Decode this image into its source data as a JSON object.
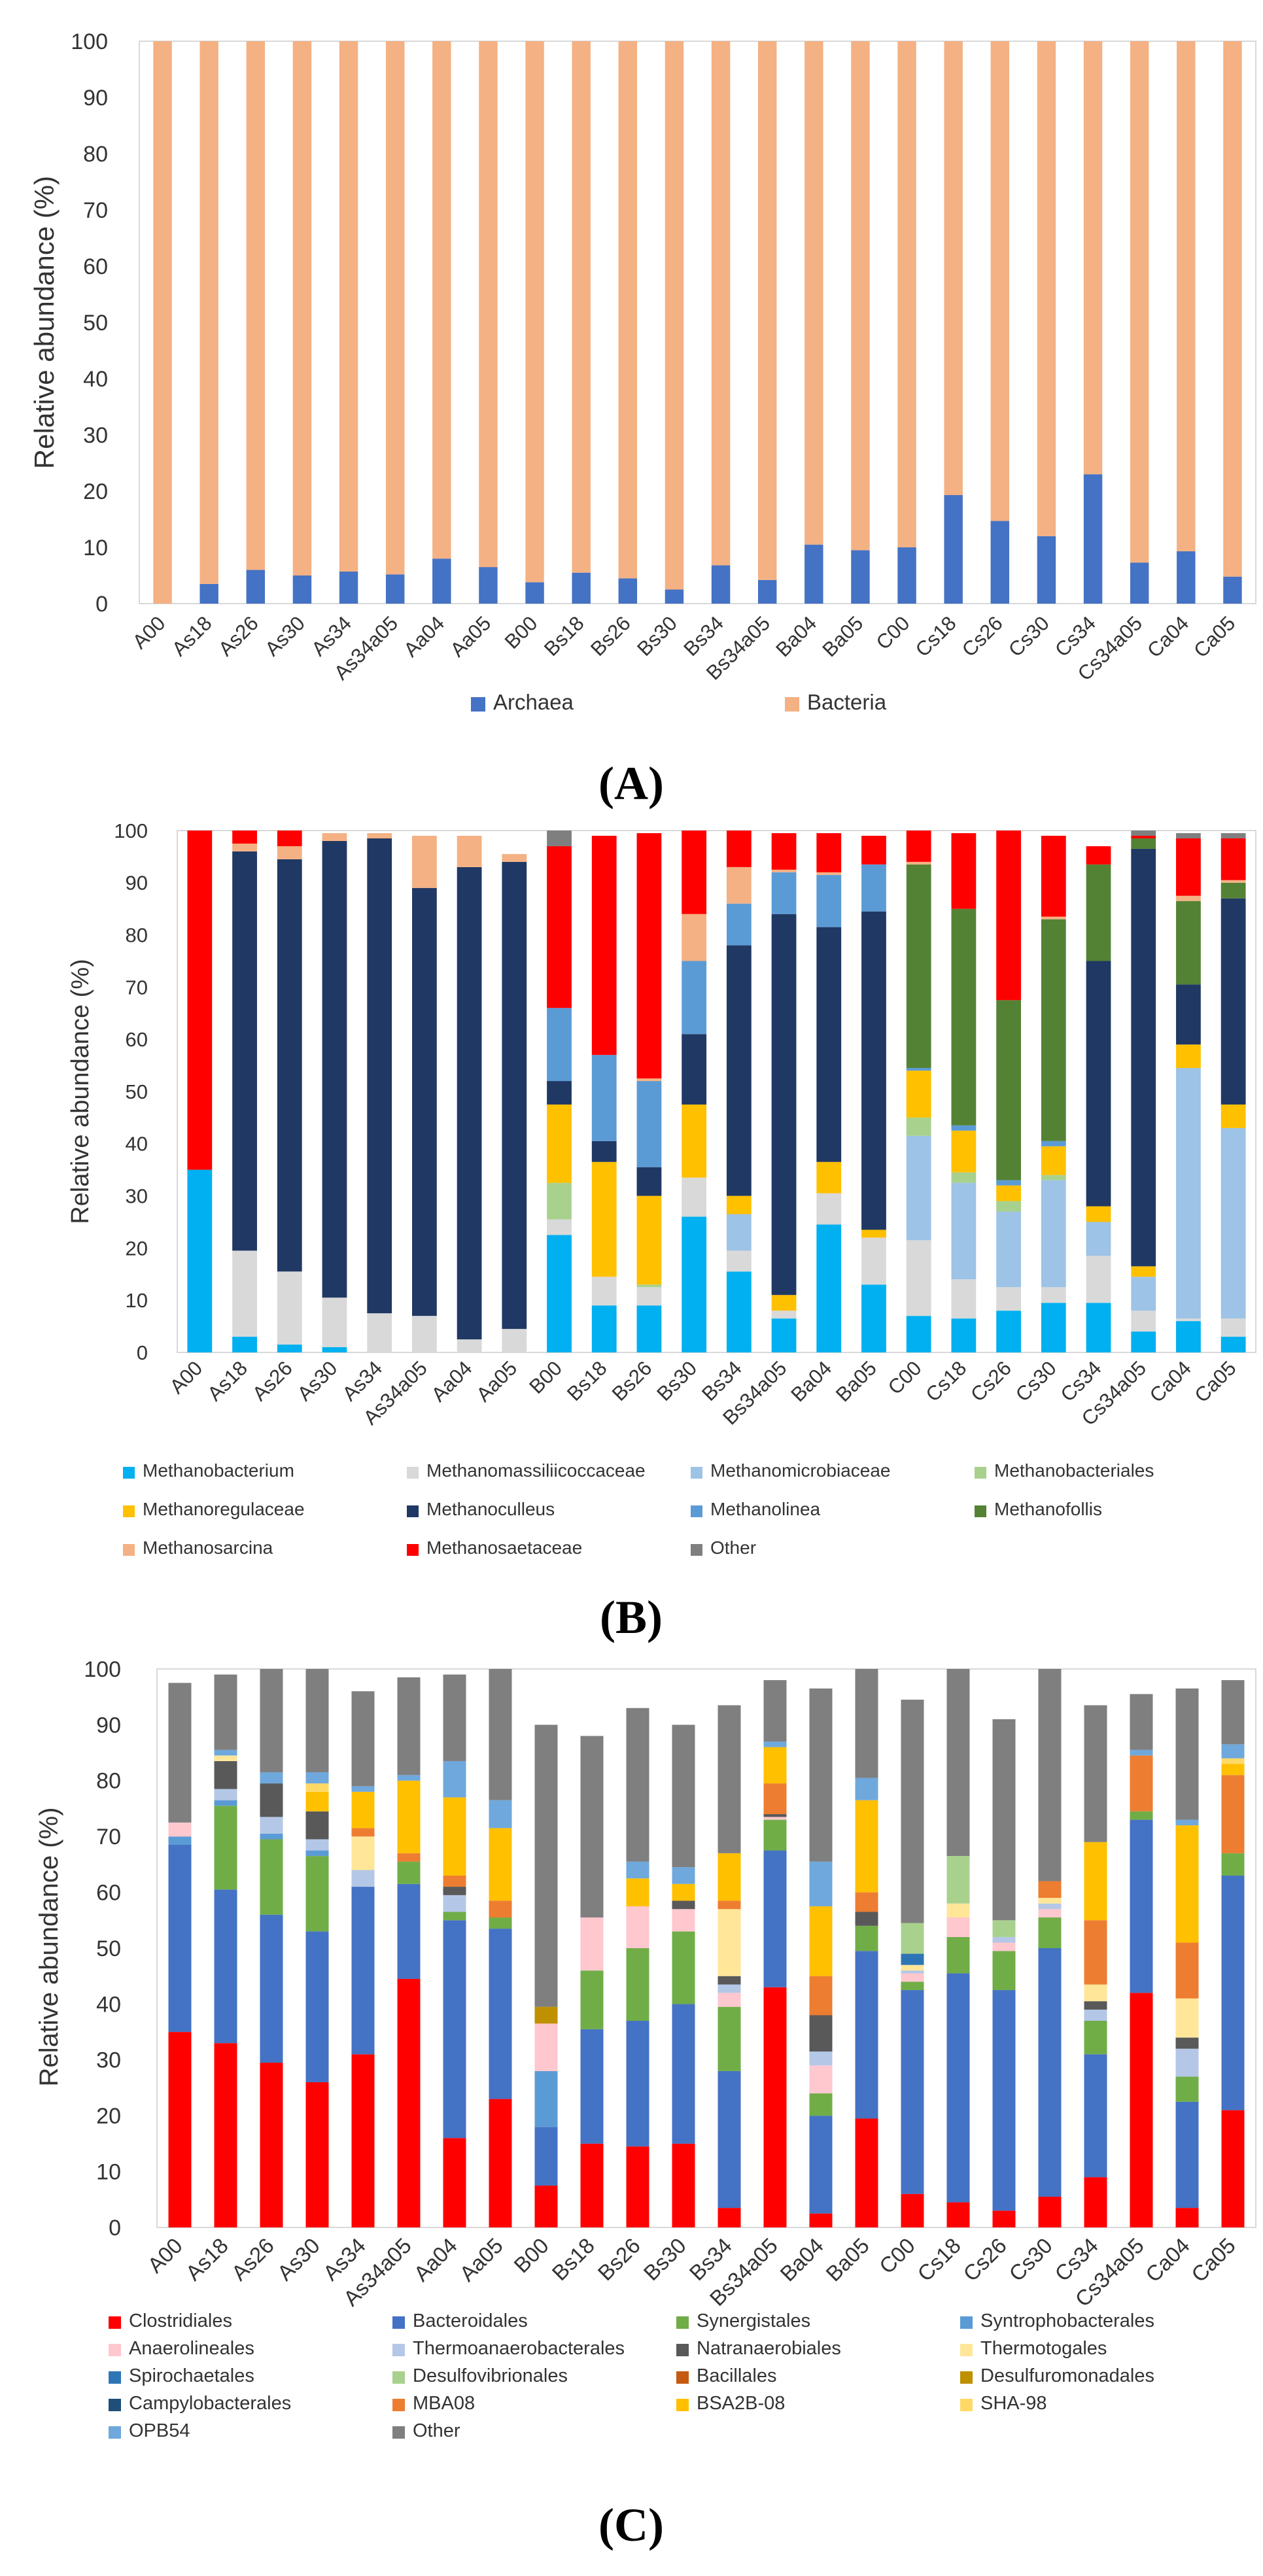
{
  "samples": [
    "A00",
    "As18",
    "As26",
    "As30",
    "As34",
    "As34a05",
    "Aa04",
    "Aa05",
    "B00",
    "Bs18",
    "Bs26",
    "Bs30",
    "Bs34",
    "Bs34a05",
    "Ba04",
    "Ba05",
    "C00",
    "Cs18",
    "Cs26",
    "Cs30",
    "Cs34",
    "Cs34a05",
    "Ca04",
    "Ca05"
  ],
  "panel_labels": [
    "(A)",
    "(B)",
    "(C)"
  ],
  "chart_data": [
    {
      "type": "bar",
      "stacked": true,
      "panel": "(A)",
      "ylabel": "Relative abundance (%)",
      "ylim": [
        0,
        100
      ],
      "yticks": [
        "0",
        "10",
        "20",
        "30",
        "40",
        "50",
        "60",
        "70",
        "80",
        "90",
        "100"
      ],
      "legend_position": "bottom",
      "legend": [
        "Archaea",
        "Bacteria"
      ],
      "series": [
        {
          "name": "Archaea",
          "color": "#4472c4",
          "values": [
            0,
            3.5,
            6,
            5,
            5.7,
            5.2,
            8,
            6.5,
            3.8,
            5.5,
            4.5,
            2.5,
            6.8,
            4.2,
            10.5,
            9.5,
            10,
            19.3,
            14.7,
            12,
            23,
            7.3,
            9.3,
            4.8
          ]
        },
        {
          "name": "Bacteria",
          "color": "#f4b183",
          "values": [
            100,
            96.5,
            94,
            95,
            94.3,
            94.8,
            92,
            93.5,
            96.2,
            94.5,
            95.5,
            97.5,
            93.2,
            95.8,
            89.5,
            90.5,
            90,
            80.7,
            85.3,
            88,
            77,
            92.7,
            90.7,
            95.2
          ]
        }
      ]
    },
    {
      "type": "bar",
      "stacked": true,
      "panel": "(B)",
      "ylabel": "Relative abundance (%)",
      "ylim": [
        0,
        100
      ],
      "yticks": [
        "0",
        "10",
        "20",
        "30",
        "40",
        "50",
        "60",
        "70",
        "80",
        "90",
        "100"
      ],
      "legend_position": "bottom",
      "legend_columns": 4,
      "series": [
        {
          "name": "Methanobacterium",
          "color": "#00b0f0",
          "values": [
            35,
            3,
            1.5,
            1,
            0,
            0,
            0,
            0,
            22.5,
            9,
            9,
            26,
            15.5,
            6.5,
            24.5,
            13,
            7,
            6.5,
            8,
            9.5,
            9.5,
            4,
            6,
            3
          ]
        },
        {
          "name": "Methanomassiliicoccaceae",
          "color": "#d9d9d9",
          "values": [
            0,
            16.5,
            14,
            9.5,
            7.5,
            7,
            2.5,
            4.5,
            3,
            5.5,
            3.5,
            7.5,
            4,
            1.5,
            6,
            9,
            14.5,
            7.5,
            4.5,
            3,
            9,
            4,
            0.5,
            3.5
          ]
        },
        {
          "name": "Methanomicrobiaceae",
          "color": "#9dc3e6",
          "values": [
            0,
            0,
            0,
            0,
            0,
            0,
            0,
            0,
            0,
            0,
            0,
            0,
            7,
            0,
            0,
            0,
            20,
            18.5,
            14.5,
            20.5,
            6.5,
            6.5,
            48,
            36.5
          ]
        },
        {
          "name": "Methanobacteriales",
          "color": "#a9d18e",
          "values": [
            0,
            0,
            0,
            0,
            0,
            0,
            0,
            0,
            7,
            0,
            0.5,
            0,
            0,
            0,
            0,
            0,
            3.5,
            2,
            2,
            1,
            0,
            0,
            0,
            0
          ]
        },
        {
          "name": "Methanoregulaceae",
          "color": "#ffc000",
          "values": [
            0,
            0,
            0,
            0,
            0,
            0,
            0,
            0,
            15,
            22,
            17,
            14,
            3.5,
            3,
            6,
            1.5,
            9,
            8,
            3,
            5.5,
            3,
            2,
            4.5,
            4.5
          ]
        },
        {
          "name": "Methanoculleus",
          "color": "#203864",
          "values": [
            0,
            76.5,
            79,
            87.5,
            91,
            82,
            90.5,
            89.5,
            4.5,
            4,
            5.5,
            13.5,
            48,
            73,
            45,
            61,
            0,
            0,
            0,
            0,
            47,
            80,
            11.5,
            39.5
          ]
        },
        {
          "name": "Methanolinea",
          "color": "#5b9bd5",
          "values": [
            0,
            0,
            0,
            0,
            0,
            0,
            0,
            0,
            14,
            16.5,
            16.5,
            14,
            8,
            8,
            10,
            9,
            0.5,
            1,
            1,
            1,
            0,
            0,
            0,
            0
          ]
        },
        {
          "name": "Methanofollis",
          "color": "#548235",
          "values": [
            0,
            0,
            0,
            0,
            0,
            0,
            0,
            0,
            0,
            0,
            0,
            0,
            0,
            0,
            0,
            0,
            39,
            41.5,
            34.5,
            42.5,
            18.5,
            2,
            16,
            3
          ]
        },
        {
          "name": "Methanosarcina",
          "color": "#f4b183",
          "values": [
            0,
            1.5,
            2.5,
            1.5,
            1,
            10,
            6,
            1.5,
            0,
            0,
            0.5,
            9,
            7,
            0.5,
            0.5,
            0,
            0.5,
            0,
            0,
            0.5,
            0,
            0,
            1,
            0.5
          ]
        },
        {
          "name": "Methanosaetaceae",
          "color": "#ff0000",
          "values": [
            65,
            2.5,
            3,
            0,
            0,
            0,
            0,
            0,
            31,
            42,
            47,
            16,
            7,
            7,
            7.5,
            5.5,
            6,
            14.5,
            32.5,
            15.5,
            3.5,
            0.5,
            11,
            8
          ]
        },
        {
          "name": "Other",
          "color": "#7f7f7f",
          "values": [
            0,
            0,
            0,
            0,
            0,
            0,
            0,
            0,
            3,
            0,
            0,
            0,
            0,
            0,
            0,
            0,
            0,
            0,
            0,
            0,
            0,
            1,
            1,
            1
          ]
        }
      ]
    },
    {
      "type": "bar",
      "stacked": true,
      "panel": "(C)",
      "ylabel": "Relative abundance (%)",
      "ylim": [
        0,
        100
      ],
      "yticks": [
        "0",
        "10",
        "20",
        "30",
        "40",
        "50",
        "60",
        "70",
        "80",
        "90",
        "100"
      ],
      "legend_position": "bottom",
      "legend_columns": 4,
      "series": [
        {
          "name": "Clostridiales",
          "color": "#ff0000",
          "values": [
            35,
            33,
            29.5,
            26,
            31,
            44.5,
            16,
            23,
            7.5,
            15,
            14.5,
            15,
            3.5,
            43,
            2.5,
            19.5,
            6,
            4.5,
            3,
            5.5,
            9,
            42,
            3.5,
            21
          ]
        },
        {
          "name": "Bacteroidales",
          "color": "#4472c4",
          "values": [
            33.5,
            27.5,
            26.5,
            27,
            30,
            17,
            39,
            30.5,
            10.5,
            20.5,
            22.5,
            25,
            24.5,
            24.5,
            17.5,
            30,
            36.5,
            41,
            39.5,
            44.5,
            22,
            31,
            19,
            42
          ]
        },
        {
          "name": "Synergistales",
          "color": "#70ad47",
          "values": [
            0,
            15,
            13.5,
            13.5,
            0,
            4,
            1.5,
            2,
            0,
            10.5,
            13,
            13,
            11.5,
            5.5,
            4,
            4.5,
            1.5,
            6.5,
            7,
            5.5,
            6,
            1.5,
            4.5,
            4
          ]
        },
        {
          "name": "Syntrophobacterales",
          "color": "#5b9bd5",
          "values": [
            1.5,
            1,
            1,
            1,
            0,
            0,
            0,
            0,
            10,
            0,
            0,
            0,
            0,
            0,
            0,
            0,
            0,
            0,
            0,
            0,
            0,
            0,
            0,
            0
          ]
        },
        {
          "name": "Anaerolineales",
          "color": "#ffc7ce",
          "values": [
            2.5,
            0,
            0,
            0,
            0,
            0,
            0,
            0,
            8.5,
            9.5,
            7.5,
            4,
            2.5,
            0.5,
            5,
            0,
            1.5,
            3.5,
            1.5,
            1.5,
            0,
            0,
            0,
            0
          ]
        },
        {
          "name": "Thermoanaerobacterales",
          "color": "#b4c7e7",
          "values": [
            0,
            2,
            3,
            2,
            3,
            0,
            3,
            0,
            0,
            0,
            0,
            0,
            1.5,
            0,
            2.5,
            0,
            0.5,
            0,
            1,
            1,
            2,
            0,
            5,
            0
          ]
        },
        {
          "name": "Natranaerobiales",
          "color": "#595959",
          "values": [
            0,
            5,
            6,
            5,
            0,
            0,
            1.5,
            0,
            0,
            0,
            0,
            1.5,
            1.5,
            0.5,
            6.5,
            2.5,
            0,
            0,
            0,
            0,
            1.5,
            0,
            2,
            0
          ]
        },
        {
          "name": "Thermotogales",
          "color": "#ffe699",
          "values": [
            0,
            1,
            0,
            0,
            6,
            0,
            0,
            0,
            0,
            0,
            0,
            0,
            12,
            0,
            0,
            0,
            1,
            2.5,
            0,
            1,
            3,
            0,
            7,
            0
          ]
        },
        {
          "name": "Spirochaetales",
          "color": "#2e75b6",
          "values": [
            0,
            0,
            0,
            0,
            0,
            0,
            0,
            0,
            0,
            0,
            0,
            0,
            0,
            0,
            0,
            0,
            2,
            0,
            0,
            0,
            0,
            0,
            0,
            0
          ]
        },
        {
          "name": "Desulfovibrionales",
          "color": "#a9d18e",
          "values": [
            0,
            0,
            0,
            0,
            0,
            0,
            0,
            0,
            0,
            0,
            0,
            0,
            0,
            0,
            0,
            0,
            5.5,
            8.5,
            3,
            0,
            0,
            0,
            0,
            0
          ]
        },
        {
          "name": "Bacillales",
          "color": "#c55a11",
          "values": [
            0,
            0,
            0,
            0,
            0,
            0,
            0,
            0,
            0,
            0,
            0,
            0,
            0,
            0,
            0,
            0,
            0,
            0,
            0,
            0,
            0,
            0,
            0,
            0
          ]
        },
        {
          "name": "Desulfuromonadales",
          "color": "#bf9000",
          "values": [
            0,
            0,
            0,
            0,
            0,
            0,
            0,
            0,
            3,
            0,
            0,
            0,
            0,
            0,
            0,
            0,
            0,
            0,
            0,
            0,
            0,
            0,
            0,
            0
          ]
        },
        {
          "name": "Campylobacterales",
          "color": "#1f4e79",
          "values": [
            0,
            0,
            0,
            0,
            0,
            0,
            0,
            0,
            0,
            0,
            0,
            0,
            0,
            0,
            0,
            0,
            0,
            0,
            0,
            0,
            0,
            0,
            0,
            0
          ]
        },
        {
          "name": "MBA08",
          "color": "#ed7d31",
          "values": [
            0,
            0,
            0,
            0,
            1.5,
            1.5,
            2,
            3,
            0,
            0,
            0,
            0,
            1.5,
            5.5,
            7,
            3.5,
            0,
            0,
            0,
            3,
            11.5,
            10,
            10,
            14
          ]
        },
        {
          "name": "BSA2B-08",
          "color": "#ffc000",
          "values": [
            0,
            0,
            0,
            3.5,
            6.5,
            13,
            14,
            13,
            0,
            0,
            5,
            3,
            8.5,
            6.5,
            12.5,
            16.5,
            0,
            0,
            0,
            0,
            14,
            0,
            21,
            2
          ]
        },
        {
          "name": "SHA-98",
          "color": "#ffd966",
          "values": [
            0,
            0,
            0,
            1.5,
            0,
            0,
            0,
            0,
            0,
            0,
            0,
            0,
            0,
            0,
            0,
            0,
            0,
            0,
            0,
            0,
            0,
            0,
            0,
            1
          ]
        },
        {
          "name": "OPB54",
          "color": "#6fa8dc",
          "values": [
            0,
            1,
            2,
            2,
            1,
            1,
            6.5,
            5,
            0,
            0,
            3,
            3,
            0,
            1,
            8,
            4,
            0,
            0,
            0,
            0,
            0,
            1,
            1,
            2.5
          ]
        },
        {
          "name": "Other",
          "color": "#7f7f7f",
          "values": [
            25,
            13.5,
            18.5,
            18.5,
            17,
            17.5,
            15.5,
            23.5,
            50.5,
            32.5,
            27.5,
            25.5,
            26.5,
            11,
            31,
            19.5,
            40,
            33.5,
            36,
            38,
            24.5,
            10,
            23.5,
            11.5
          ]
        }
      ]
    }
  ]
}
